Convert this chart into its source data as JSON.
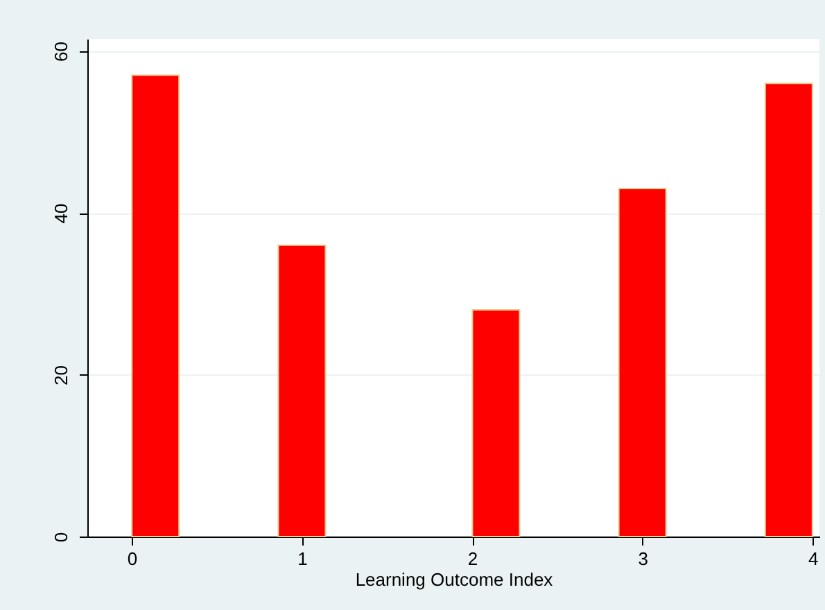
{
  "chart_data": {
    "type": "bar",
    "xlabel": "Learning Outcome Index",
    "x": [
      0.14,
      1,
      2.14,
      3,
      3.86
    ],
    "values": [
      57,
      36,
      28,
      43,
      56
    ],
    "color": "#ff0000",
    "xlim": [
      -0.26,
      4.04
    ],
    "xticks": [
      0,
      1,
      2,
      3,
      4
    ],
    "ylim": [
      0,
      61.5
    ],
    "yticks": [
      0,
      20,
      40,
      60
    ],
    "grid": "y"
  }
}
